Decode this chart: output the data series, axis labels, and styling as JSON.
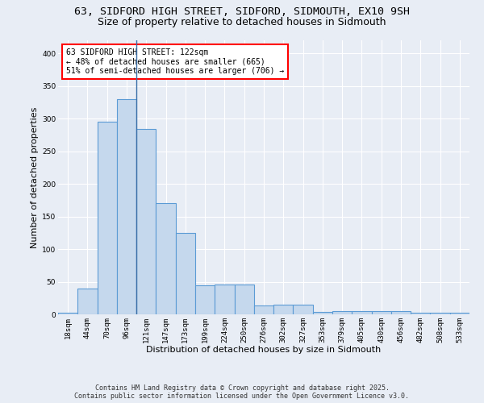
{
  "title_line1": "63, SIDFORD HIGH STREET, SIDFORD, SIDMOUTH, EX10 9SH",
  "title_line2": "Size of property relative to detached houses in Sidmouth",
  "xlabel": "Distribution of detached houses by size in Sidmouth",
  "ylabel": "Number of detached properties",
  "bar_color": "#c5d8ed",
  "bar_edge_color": "#5b9bd5",
  "vline_color": "#3a6fa8",
  "vline_x_index": 4,
  "categories": [
    "18sqm",
    "44sqm",
    "70sqm",
    "96sqm",
    "121sqm",
    "147sqm",
    "173sqm",
    "199sqm",
    "224sqm",
    "250sqm",
    "276sqm",
    "302sqm",
    "327sqm",
    "353sqm",
    "379sqm",
    "405sqm",
    "430sqm",
    "456sqm",
    "482sqm",
    "508sqm",
    "533sqm"
  ],
  "values": [
    3,
    39,
    295,
    330,
    284,
    170,
    125,
    45,
    46,
    46,
    14,
    15,
    15,
    4,
    5,
    5,
    5,
    5,
    3,
    2,
    2
  ],
  "ylim": [
    0,
    420
  ],
  "yticks": [
    0,
    50,
    100,
    150,
    200,
    250,
    300,
    350,
    400
  ],
  "annotation_text": "63 SIDFORD HIGH STREET: 122sqm\n← 48% of detached houses are smaller (665)\n51% of semi-detached houses are larger (706) →",
  "background_color": "#e8edf5",
  "plot_bg_color": "#e8edf5",
  "footer_line1": "Contains HM Land Registry data © Crown copyright and database right 2025.",
  "footer_line2": "Contains public sector information licensed under the Open Government Licence v3.0.",
  "title_fontsize": 9.5,
  "subtitle_fontsize": 9,
  "axis_label_fontsize": 8,
  "tick_fontsize": 6.5,
  "annotation_fontsize": 7,
  "footer_fontsize": 6
}
